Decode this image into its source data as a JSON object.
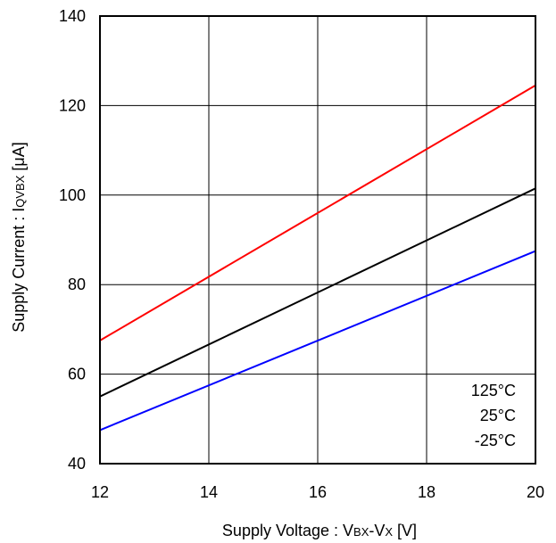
{
  "chart_data": {
    "type": "line",
    "title": "",
    "xlabel": {
      "parts": [
        {
          "text": "Supply Voltage : V",
          "sub": false
        },
        {
          "text": "BX",
          "sub": true
        },
        {
          "text": "-V",
          "sub": false
        },
        {
          "text": "X",
          "sub": true
        },
        {
          "text": " [V]",
          "sub": false
        }
      ]
    },
    "ylabel": {
      "parts": [
        {
          "text": "Supply Current : I",
          "sub": false
        },
        {
          "text": "QVBX",
          "sub": true
        },
        {
          "text": " [μA]",
          "sub": false
        }
      ]
    },
    "xlim": [
      12,
      20
    ],
    "ylim": [
      40,
      140
    ],
    "xticks": [
      12,
      14,
      16,
      18,
      20
    ],
    "yticks": [
      40,
      60,
      80,
      100,
      120,
      140
    ],
    "grid": true,
    "legend_position": "bottom-right",
    "series": [
      {
        "name": "125°C",
        "color": "#ff0000",
        "x": [
          12,
          20
        ],
        "y": [
          67.5,
          124.5
        ]
      },
      {
        "name": "25°C",
        "color": "#000000",
        "x": [
          12,
          20
        ],
        "y": [
          55.0,
          101.5
        ]
      },
      {
        "name": "-25°C",
        "color": "#0000ff",
        "x": [
          12,
          20
        ],
        "y": [
          47.5,
          87.5
        ]
      }
    ]
  }
}
